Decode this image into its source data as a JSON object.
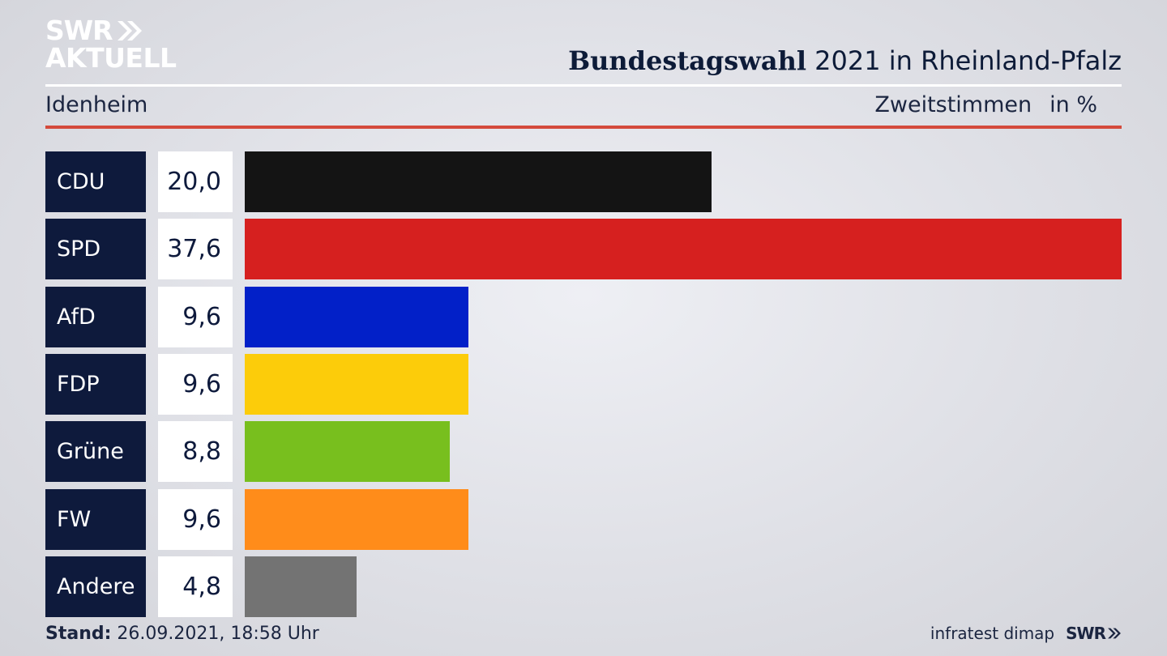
{
  "brand": {
    "line1": "SWR",
    "line2": "AKTUELL"
  },
  "header": {
    "title_bold": "Bundestagswahl",
    "title_rest": "2021 in Rheinland-Pfalz",
    "location": "Idenheim",
    "metric": "Zweitstimmen",
    "unit": "in %"
  },
  "footer": {
    "stand_label": "Stand:",
    "stand_value": "26.09.2021, 18:58 Uhr",
    "source": "infratest dimap",
    "logo": "SWR"
  },
  "chart_data": {
    "type": "bar",
    "orientation": "horizontal",
    "categories": [
      "CDU",
      "SPD",
      "AfD",
      "FDP",
      "Grüne",
      "FW",
      "Andere"
    ],
    "values": [
      20.0,
      37.6,
      9.6,
      9.6,
      8.8,
      9.6,
      4.8
    ],
    "value_labels": [
      "20,0",
      "37,6",
      "9,6",
      "9,6",
      "8,8",
      "9,6",
      "4,8"
    ],
    "colors": [
      "#141414",
      "#d6201f",
      "#0220c8",
      "#fccc0a",
      "#78bf1e",
      "#ff8c1a",
      "#737373"
    ],
    "xlim": [
      0,
      37.6
    ],
    "grid": false,
    "legend": "none"
  }
}
